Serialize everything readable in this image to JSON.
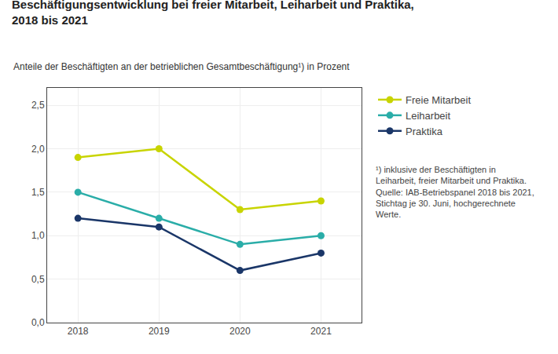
{
  "chart_data": {
    "type": "line",
    "title": "Beschäftigungsentwicklung bei freier Mitarbeit, Leiharbeit und Praktika,\n2018 bis 2021",
    "subtitle": "Anteile der Beschäftigten an der betrieblichen Gesamtbeschäftigung¹) in Prozent",
    "x": [
      2018,
      2019,
      2020,
      2021
    ],
    "series": [
      {
        "name": "Freie Mitarbeit",
        "color": "#c8d400",
        "marker": "circle",
        "values": [
          1.9,
          2.0,
          1.3,
          1.4
        ]
      },
      {
        "name": "Leiharbeit",
        "color": "#2aada8",
        "marker": "circle",
        "values": [
          1.5,
          1.2,
          0.9,
          1.0
        ]
      },
      {
        "name": "Praktika",
        "color": "#1a3668",
        "marker": "circle",
        "values": [
          1.2,
          1.1,
          0.6,
          0.8
        ]
      }
    ],
    "xlim": [
      2017.62,
      2021.5
    ],
    "xticks": [
      2018,
      2019,
      2020,
      2021
    ],
    "ylim": [
      0.0,
      2.7
    ],
    "yticks": [
      {
        "value": 0.0,
        "label": "0,0"
      },
      {
        "value": 0.5,
        "label": "0,5"
      },
      {
        "value": 1.0,
        "label": "1,0"
      },
      {
        "value": 1.5,
        "label": "1,5"
      },
      {
        "value": 2.0,
        "label": "2,0"
      },
      {
        "value": 2.5,
        "label": "2,5"
      }
    ],
    "grid": true,
    "legend": "right",
    "annotations": [
      "¹) inklusive der Beschäftigten in\nLeiharbeit, freier Mitarbeit und Praktika.\nQuelle: IAB-Betriebspanel 2018 bis 2021,\nStichtag je 30. Juni, hochgerechnete\nWerte."
    ]
  }
}
